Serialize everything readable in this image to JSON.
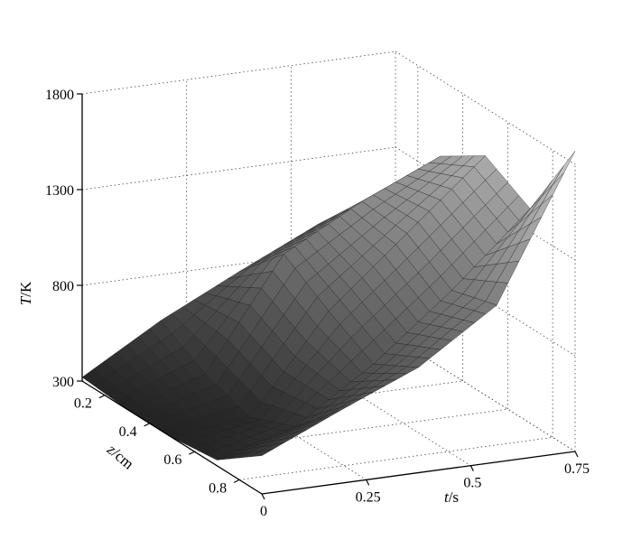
{
  "chart_data": {
    "type": "surface3d",
    "title": "",
    "x_axis": {
      "label_var": "t",
      "label_unit": "/s",
      "ticks": [
        0,
        0.25,
        0.5,
        0.75
      ],
      "tick_labels": [
        "0",
        "0.25",
        "0.5",
        "0.75"
      ],
      "range": [
        0,
        0.75
      ]
    },
    "y_axis": {
      "label_var": "z",
      "label_unit": "/cm",
      "ticks": [
        0.2,
        0.4,
        0.6,
        0.8
      ],
      "tick_labels": [
        "0.2",
        "0.4",
        "0.6",
        "0.8"
      ],
      "range": [
        0.1,
        0.9
      ]
    },
    "z_axis": {
      "label_var": "T",
      "label_unit": "/K",
      "ticks": [
        300,
        800,
        1300,
        1800
      ],
      "tick_labels": [
        "300",
        "800",
        "1300",
        "1800"
      ],
      "range": [
        300,
        1800
      ]
    },
    "surface": {
      "t": [
        0,
        0.1875,
        0.375,
        0.5625,
        0.75
      ],
      "z": [
        0.1,
        0.3,
        0.5,
        0.7,
        0.9
      ],
      "T": [
        [
          320,
          560,
          760,
          950,
          1060
        ],
        [
          300,
          430,
          1000,
          1220,
          1400
        ],
        [
          300,
          350,
          850,
          1200,
          1550
        ],
        [
          330,
          450,
          720,
          1050,
          1420
        ],
        [
          500,
          680,
          850,
          1120,
          1870
        ]
      ]
    },
    "colormap": "gray",
    "grid": true
  }
}
